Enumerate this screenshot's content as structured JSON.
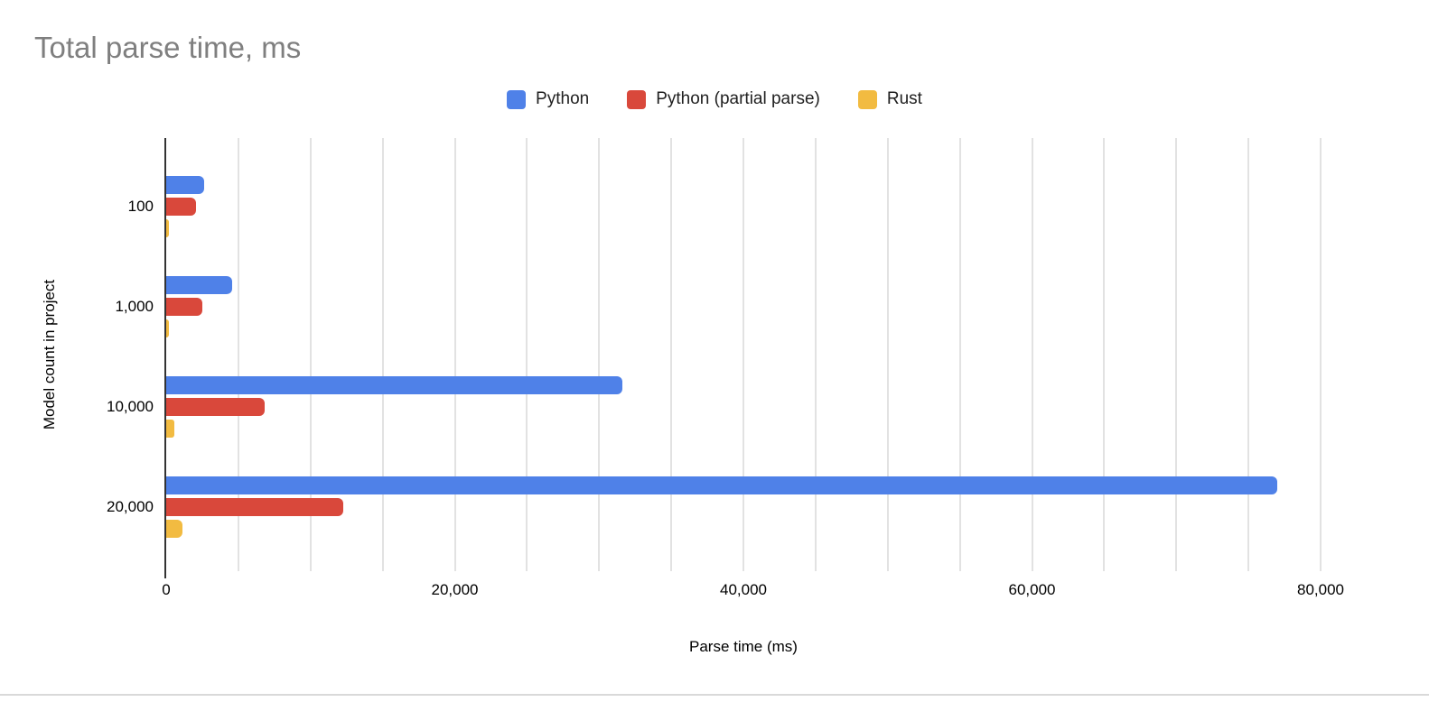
{
  "chart_data": {
    "type": "bar",
    "orientation": "horizontal",
    "title": "Total parse time, ms",
    "xlabel": "Parse time (ms)",
    "ylabel": "Model count in project",
    "categories": [
      "100",
      "1,000",
      "10,000",
      "20,000"
    ],
    "series": [
      {
        "name": "Python",
        "color": "#4f81e8",
        "values": [
          2600,
          4600,
          31600,
          77000
        ]
      },
      {
        "name": "Python (partial parse)",
        "color": "#d9483b",
        "values": [
          2050,
          2500,
          6800,
          12250
        ]
      },
      {
        "name": "Rust",
        "color": "#f2bb41",
        "values": [
          60,
          130,
          590,
          1150
        ]
      }
    ],
    "x_axis": {
      "min": 0,
      "max": 80000,
      "major_tick_step": 20000,
      "minor_gridline_step": 5000,
      "tick_labels": [
        "0",
        "20,000",
        "40,000",
        "60,000",
        "80,000"
      ]
    },
    "legend_position": "top-center",
    "grid": true
  },
  "colors": {
    "title_text": "#7f7f7f",
    "axis_line": "#333333",
    "gridline": "#e2e2e2",
    "tick_text": "#000000",
    "page_border": "#d9d9d9",
    "background": "#ffffff"
  }
}
